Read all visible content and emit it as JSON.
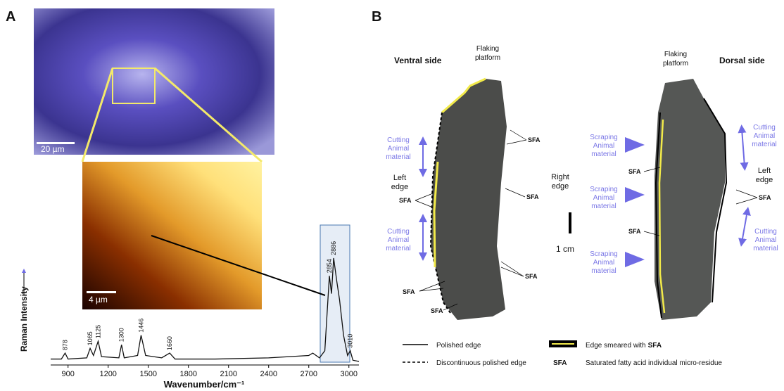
{
  "panel_a": {
    "label": "A",
    "scale_bar_micro": "20 µm",
    "scale_bar_map": "4 µm",
    "chart_data": {
      "type": "line",
      "y_label": "Raman Intensity",
      "x_label": "Wavenumber/cm⁻¹",
      "x": [
        770,
        850,
        878,
        900,
        1040,
        1065,
        1090,
        1125,
        1150,
        1280,
        1300,
        1320,
        1420,
        1446,
        1480,
        1600,
        1660,
        1700,
        2000,
        2400,
        2700,
        2730,
        2780,
        2820,
        2854,
        2870,
        2886,
        2910,
        2930,
        2960,
        2990,
        3010,
        3030,
        3075
      ],
      "series": [
        {
          "color": "#111111",
          "values": [
            5,
            5,
            10,
            5,
            6,
            14,
            8,
            20,
            7,
            6,
            17,
            6,
            8,
            25,
            8,
            6,
            10,
            5,
            5,
            6,
            8,
            10,
            6,
            12,
            75,
            60,
            90,
            70,
            55,
            25,
            8,
            12,
            4,
            3
          ]
        }
      ],
      "xlim": [
        770,
        3075
      ],
      "ylim": [
        0,
        100
      ],
      "xticks": [
        900,
        1200,
        1500,
        1800,
        2100,
        2400,
        2700,
        3000
      ],
      "peak_labels": [
        878,
        1065,
        1125,
        1300,
        1446,
        1660,
        2854,
        2886,
        3010
      ]
    }
  },
  "panel_b": {
    "label": "B",
    "ventral_side": "Ventral side",
    "dorsal_side": "Dorsal side",
    "flaking_platform_left": [
      "Flaking",
      "platform"
    ],
    "flaking_platform_right": [
      "Flaking",
      "platform"
    ],
    "cutting_left_top": [
      "Cutting",
      "Animal",
      "material"
    ],
    "cutting_left_bottom": [
      "Cutting",
      "Animal",
      "material"
    ],
    "left_edge_ventral": [
      "Left",
      "edge"
    ],
    "right_edge": [
      "Right",
      "edge"
    ],
    "scale": "1 cm",
    "scraping_1": [
      "Scraping",
      "Animal",
      "material"
    ],
    "scraping_2": [
      "Scraping",
      "Animal",
      "material"
    ],
    "scraping_3": [
      "Scraping",
      "Animal",
      "material"
    ],
    "cutting_right_top": [
      "Cutting",
      "Animal",
      "material"
    ],
    "cutting_right_bottom": [
      "Cutting",
      "Animal",
      "material"
    ],
    "left_edge_dorsal": [
      "Left",
      "edge"
    ],
    "sfa_labels": [
      "SFA",
      "SFA",
      "SFA",
      "SFA",
      "SFA",
      "SFA",
      "SFA",
      "SFA",
      "SFA"
    ],
    "legend": {
      "polished_edge": "Polished edge",
      "discontinuous": "Discontinuous polished edge",
      "smeared": "Edge smeared with",
      "smeared_bold": "SFA",
      "sfa_key": "SFA",
      "sfa_desc": "Saturated fatty acid individual micro-residue"
    }
  }
}
